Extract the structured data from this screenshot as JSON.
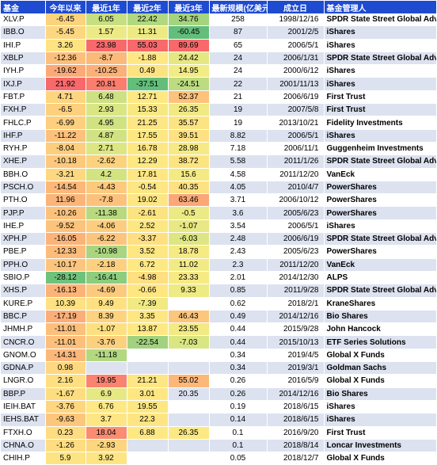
{
  "headers": [
    "基金",
    "今年以来",
    "最近1年",
    "最近2年",
    "最近3年",
    "最新规模(亿美元)",
    "成立日",
    "基金管理人"
  ],
  "rows": [
    {
      "code": "XLV.P",
      "ytd": "-6.45",
      "y1": "6.05",
      "y2": "22.42",
      "y3": "34.76",
      "aum": "258",
      "date": "1998/12/16",
      "mgr": "SPDR State Street Global Advisors",
      "c": [
        "#fbd37f",
        "#c6df81",
        "#b1d880",
        "#a5d47f"
      ]
    },
    {
      "code": "IBB.O",
      "ytd": "-5.45",
      "y1": "1.57",
      "y2": "11.31",
      "y3": "-60.45",
      "aum": "87",
      "date": "2001/2/5",
      "mgr": "iShares",
      "c": [
        "#fdd780",
        "#ecea84",
        "#edea84",
        "#63be7b"
      ]
    },
    {
      "code": "IHI.P",
      "ytd": "3.26",
      "y1": "23.98",
      "y2": "55.03",
      "y3": "89.69",
      "aum": "65",
      "date": "2006/5/1",
      "mgr": "iShares",
      "c": [
        "#fee382",
        "#f8696b",
        "#f8696b",
        "#f8696b"
      ]
    },
    {
      "code": "XBLP",
      "ytd": "-12.36",
      "y1": "-8.7",
      "y2": "-1.88",
      "y3": "24.42",
      "aum": "24",
      "date": "2006/1/31",
      "mgr": "SPDR State Street Global Advisors",
      "c": [
        "#fcc07c",
        "#fbb97a",
        "#ffe884",
        "#e5e783"
      ]
    },
    {
      "code": "IYH.P",
      "ytd": "-19.62",
      "y1": "-10.25",
      "y2": "0.49",
      "y3": "14.95",
      "aum": "24",
      "date": "2000/6/12",
      "mgr": "iShares",
      "c": [
        "#fbaa77",
        "#fbb077",
        "#fce382",
        "#f2ec85"
      ]
    },
    {
      "code": "IXJ.P",
      "ytd": "21.92",
      "y1": "20.81",
      "y2": "-37.51",
      "y3": "-24.51",
      "aum": "22",
      "date": "2001/11/13",
      "mgr": "iShares",
      "c": [
        "#f8696b",
        "#fa7d6e",
        "#63be7b",
        "#bddb80"
      ]
    },
    {
      "code": "FBT.P",
      "ytd": "4.71",
      "y1": "6.48",
      "y2": "12.71",
      "y3": "52.37",
      "aum": "21",
      "date": "2006/6/19",
      "mgr": "First Trust",
      "c": [
        "#fed57f",
        "#cde182",
        "#fde883",
        "#fdc27c"
      ]
    },
    {
      "code": "FXH.P",
      "ytd": "-6.5",
      "y1": "2.93",
      "y2": "15.33",
      "y3": "26.35",
      "aum": "19",
      "date": "2007/5/8",
      "mgr": "First Trust",
      "c": [
        "#fdd07e",
        "#dae683",
        "#f7e883",
        "#f0e984"
      ]
    },
    {
      "code": "FHLC.P",
      "ytd": "-6.99",
      "y1": "4.95",
      "y2": "21.25",
      "y3": "35.57",
      "aum": "19",
      "date": "2013/10/21",
      "mgr": "Fidelity Investments",
      "c": [
        "#fdcf7e",
        "#d0e282",
        "#fde683",
        "#fde483"
      ]
    },
    {
      "code": "IHF.P",
      "ytd": "-11.22",
      "y1": "4.87",
      "y2": "17.55",
      "y3": "39.51",
      "aum": "8.82",
      "date": "2006/5/1",
      "mgr": "iShares",
      "c": [
        "#fcc17c",
        "#d0e282",
        "#fde783",
        "#fde182"
      ]
    },
    {
      "code": "RYH.P",
      "ytd": "-8.04",
      "y1": "2.71",
      "y2": "16.78",
      "y3": "28.98",
      "aum": "7.18",
      "date": "2006/11/1",
      "mgr": "Guggenheim Investments",
      "c": [
        "#fdce7e",
        "#dce683",
        "#fde783",
        "#f6ea84"
      ]
    },
    {
      "code": "XHE.P",
      "ytd": "-10.18",
      "y1": "-2.62",
      "y2": "12.29",
      "y3": "38.72",
      "aum": "5.58",
      "date": "2011/1/26",
      "mgr": "SPDR State Street Global Advisors",
      "c": [
        "#fcc97d",
        "#fcd27f",
        "#fde883",
        "#fde482"
      ]
    },
    {
      "code": "BBH.O",
      "ytd": "-3.21",
      "y1": "4.2",
      "y2": "17.81",
      "y3": "15.6",
      "aum": "4.58",
      "date": "2011/12/20",
      "mgr": "VanEck",
      "c": [
        "#fdd880",
        "#d3e382",
        "#fde683",
        "#f3ea84"
      ]
    },
    {
      "code": "PSCH.O",
      "ytd": "-14.54",
      "y1": "-4.43",
      "y2": "-0.54",
      "y3": "40.35",
      "aum": "4.05",
      "date": "2010/4/7",
      "mgr": "PowerShares",
      "c": [
        "#fcb879",
        "#fcc97d",
        "#fde683",
        "#fde182"
      ]
    },
    {
      "code": "PTH.O",
      "ytd": "11.96",
      "y1": "-7.8",
      "y2": "19.02",
      "y3": "63.46",
      "aum": "3.71",
      "date": "2006/10/12",
      "mgr": "PowerShares",
      "c": [
        "#fbb579",
        "#fcc17c",
        "#fde683",
        "#fba777"
      ]
    },
    {
      "code": "PJP.P",
      "ytd": "-10.26",
      "y1": "-11.38",
      "y2": "-2.61",
      "y3": "-0.5",
      "aum": "3.6",
      "date": "2005/6/23",
      "mgr": "PowerShares",
      "c": [
        "#fcc27c",
        "#b9d97f",
        "#fce382",
        "#ecea84"
      ]
    },
    {
      "code": "IHE.P",
      "ytd": "-9.52",
      "y1": "-4.06",
      "y2": "2.52",
      "y3": "-1.07",
      "aum": "3.54",
      "date": "2006/5/1",
      "mgr": "iShares",
      "c": [
        "#fcc37c",
        "#fccd7e",
        "#fde783",
        "#e8e884"
      ]
    },
    {
      "code": "XPH.P",
      "ytd": "-16.05",
      "y1": "-6.22",
      "y2": "-3.37",
      "y3": "-6.03",
      "aum": "2.48",
      "date": "2006/6/19",
      "mgr": "SPDR State Street Global Advisors",
      "c": [
        "#fbb378",
        "#fcc57d",
        "#fee082",
        "#dde683"
      ]
    },
    {
      "code": "PBE.P",
      "ytd": "-12.33",
      "y1": "-10.98",
      "y2": "3.52",
      "y3": "18.78",
      "aum": "2.43",
      "date": "2005/6/23",
      "mgr": "PowerShares",
      "c": [
        "#fcbc7b",
        "#aad580",
        "#fee783",
        "#f6ea84"
      ]
    },
    {
      "code": "PPH.O",
      "ytd": "-10.17",
      "y1": "-2.18",
      "y2": "6.72",
      "y3": "11.02",
      "aum": "2.3",
      "date": "2011/12/20",
      "mgr": "VanEck",
      "c": [
        "#fcc57d",
        "#fcd07e",
        "#fee883",
        "#f2ea84"
      ]
    },
    {
      "code": "SBIO.P",
      "ytd": "-28.12",
      "y1": "-16.41",
      "y2": "-4.98",
      "y3": "23.33",
      "aum": "2.01",
      "date": "2014/12/30",
      "mgr": "ALPS",
      "c": [
        "#6fc27c",
        "#8ccd7e",
        "#fedf81",
        "#f6ea84"
      ]
    },
    {
      "code": "XHS.P",
      "ytd": "-16.13",
      "y1": "-4.69",
      "y2": "-0.66",
      "y3": "9.33",
      "aum": "0.85",
      "date": "2011/9/28",
      "mgr": "SPDR State Street Global Advisors",
      "c": [
        "#fbb378",
        "#fcca7d",
        "#fee683",
        "#eeea84"
      ]
    },
    {
      "code": "KURE.P",
      "ytd": "10.39",
      "y1": "9.49",
      "y2": "-7.39",
      "y3": "",
      "aum": "0.62",
      "date": "2018/2/1",
      "mgr": "KraneShares",
      "c": [
        "#fde183",
        "#fde082",
        "#f1e984",
        "transparent"
      ]
    },
    {
      "code": "BBC.P",
      "ytd": "-17.19",
      "y1": "8.39",
      "y2": "3.35",
      "y3": "46.43",
      "aum": "0.49",
      "date": "2014/12/16",
      "mgr": "Bio Shares",
      "c": [
        "#fbae77",
        "#fdd37f",
        "#fee783",
        "#fcc67d"
      ]
    },
    {
      "code": "JHMH.P",
      "ytd": "-11.01",
      "y1": "-1.07",
      "y2": "13.87",
      "y3": "23.55",
      "aum": "0.44",
      "date": "2015/9/28",
      "mgr": "John Hancock",
      "c": [
        "#fcc07c",
        "#fee080",
        "#fde883",
        "#f3ea84"
      ]
    },
    {
      "code": "CNCR.O",
      "ytd": "-11.01",
      "y1": "-3.76",
      "y2": "-22.54",
      "y3": "-7.03",
      "aum": "0.44",
      "date": "2015/10/13",
      "mgr": "ETF Series Solutions",
      "c": [
        "#fcc07c",
        "#fcd17e",
        "#a2d27f",
        "#dae683"
      ]
    },
    {
      "code": "GNOM.O",
      "ytd": "-14.31",
      "y1": "-11.18",
      "y2": "",
      "y3": "",
      "aum": "0.34",
      "date": "2019/4/5",
      "mgr": "Global X Funds",
      "c": [
        "#fcb87a",
        "#b2d880",
        "transparent",
        "transparent"
      ]
    },
    {
      "code": "GDNA.P",
      "ytd": "0.98",
      "y1": "",
      "y2": "",
      "y3": "",
      "aum": "0.34",
      "date": "2019/3/1",
      "mgr": "Goldman Sachs",
      "c": [
        "#fed780",
        "transparent",
        "transparent",
        "transparent"
      ]
    },
    {
      "code": "LNGR.O",
      "ytd": "2.16",
      "y1": "19.95",
      "y2": "21.21",
      "y3": "55.02",
      "aum": "0.26",
      "date": "2016/5/9",
      "mgr": "Global X Funds",
      "c": [
        "#fee082",
        "#f98370",
        "#fde683",
        "#fbb879"
      ]
    },
    {
      "code": "BBP.P",
      "ytd": "-1.67",
      "y1": "6.9",
      "y2": "3.01",
      "y3": "20.35",
      "aum": "0.26",
      "date": "2014/12/16",
      "mgr": "Bio Shares",
      "c": [
        "#fedd81",
        "#e6e883",
        "#fee783",
        "transparent"
      ]
    },
    {
      "code": "IEIH.BAT",
      "ytd": "-3.76",
      "y1": "6.76",
      "y2": "19.55",
      "y3": "",
      "aum": "0.19",
      "date": "2018/6/15",
      "mgr": "iShares",
      "c": [
        "#fed680",
        "#fde883",
        "#fde783",
        "transparent"
      ]
    },
    {
      "code": "IEHS.BAT",
      "ytd": "-9.63",
      "y1": "3.7",
      "y2": "22.3",
      "y3": "",
      "aum": "0.14",
      "date": "2018/6/15",
      "mgr": "iShares",
      "c": [
        "#fdc67d",
        "#fde683",
        "#fde583",
        "transparent"
      ]
    },
    {
      "code": "FTXH.O",
      "ytd": "0.23",
      "y1": "18.04",
      "y2": "6.88",
      "y3": "26.35",
      "aum": "0.1",
      "date": "2016/9/20",
      "mgr": "First Trust",
      "c": [
        "#fedc81",
        "#f98c71",
        "#fee883",
        "#fde983"
      ]
    },
    {
      "code": "CHNA.O",
      "ytd": "-1.26",
      "y1": "-2.93",
      "y2": "",
      "y3": "",
      "aum": "0.1",
      "date": "2018/8/14",
      "mgr": "Loncar Investments",
      "c": [
        "#fedc81",
        "#fbd580",
        "transparent",
        "transparent"
      ]
    },
    {
      "code": "CHIH.P",
      "ytd": "5.9",
      "y1": "3.92",
      "y2": "",
      "y3": "",
      "aum": "0.05",
      "date": "2018/12/7",
      "mgr": "Global X Funds",
      "c": [
        "#fde483",
        "#fde583",
        "transparent",
        "transparent"
      ]
    }
  ]
}
